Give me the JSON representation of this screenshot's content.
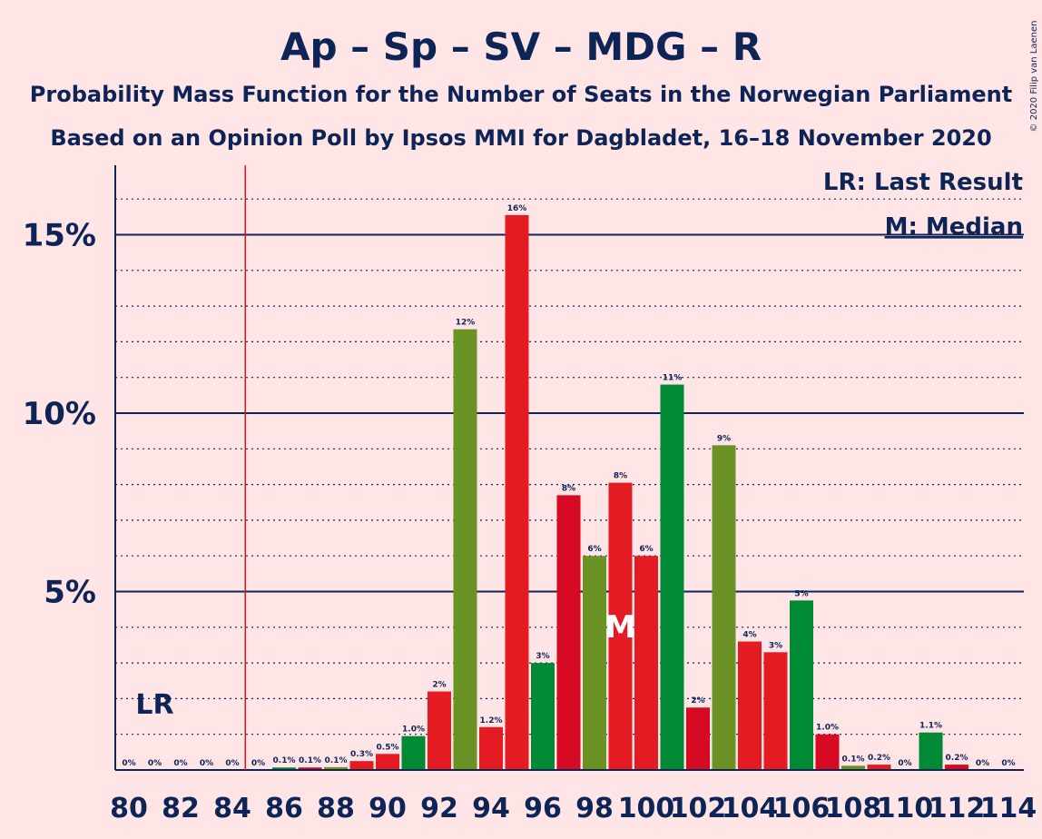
{
  "header": {
    "title": "Ap – Sp – SV – MDG – R",
    "subtitle1": "Probability Mass Function for the Number of Seats in the Norwegian Parliament",
    "subtitle2": "Based on an Opinion Poll by Ipsos MMI for Dagbladet, 16–18 November 2020"
  },
  "copyright": "© 2020 Filip van Laenen",
  "legend": {
    "lr": "LR: Last Result",
    "median": "M: Median"
  },
  "markers": {
    "lr_label": "LR",
    "median_label": "M",
    "last_result_seats": 84.5,
    "median_seats": 99
  },
  "colors": {
    "background": "#FFE5E6",
    "axis": "#0D2456",
    "lr_line": "#E8121F",
    "red": "#E41B23",
    "darkred": "#D60A22",
    "olive": "#6B9225",
    "green": "#008A36"
  },
  "chart_data": {
    "type": "bar",
    "title": "Ap – Sp – SV – MDG – R",
    "xlabel": "",
    "ylabel": "",
    "ylim": [
      0,
      16.5
    ],
    "y_ticks": [
      {
        "value": 5,
        "label": "5%"
      },
      {
        "value": 10,
        "label": "10%"
      },
      {
        "value": 15,
        "label": "15%"
      }
    ],
    "x_ticks": [
      "80",
      "82",
      "84",
      "86",
      "88",
      "90",
      "92",
      "94",
      "96",
      "98",
      "100",
      "102",
      "104",
      "106",
      "108",
      "110",
      "112",
      "114"
    ],
    "grid": true,
    "legend_position": "top-right",
    "bars": [
      {
        "seats": 80,
        "value": 0,
        "label": "0%",
        "color": "red"
      },
      {
        "seats": 81,
        "value": 0,
        "label": "0%",
        "color": "red"
      },
      {
        "seats": 82,
        "value": 0,
        "label": "0%",
        "color": "red"
      },
      {
        "seats": 83,
        "value": 0,
        "label": "0%",
        "color": "red"
      },
      {
        "seats": 84,
        "value": 0,
        "label": "0%",
        "color": "red"
      },
      {
        "seats": 85,
        "value": 0,
        "label": "0%",
        "color": "red"
      },
      {
        "seats": 86,
        "value": 0.07,
        "label": "0.1%",
        "color": "green"
      },
      {
        "seats": 87,
        "value": 0.07,
        "label": "0.1%",
        "color": "darkred"
      },
      {
        "seats": 88,
        "value": 0.08,
        "label": "0.1%",
        "color": "olive"
      },
      {
        "seats": 89,
        "value": 0.25,
        "label": "0.3%",
        "color": "red"
      },
      {
        "seats": 90,
        "value": 0.45,
        "label": "0.5%",
        "color": "red"
      },
      {
        "seats": 91,
        "value": 0.95,
        "label": "1.0%",
        "color": "green"
      },
      {
        "seats": 92,
        "value": 2.2,
        "label": "2%",
        "color": "red"
      },
      {
        "seats": 93,
        "value": 12.35,
        "label": "12%",
        "color": "olive"
      },
      {
        "seats": 94,
        "value": 1.2,
        "label": "1.2%",
        "color": "red"
      },
      {
        "seats": 95,
        "value": 15.55,
        "label": "16%",
        "color": "red"
      },
      {
        "seats": 96,
        "value": 3.0,
        "label": "3%",
        "color": "green"
      },
      {
        "seats": 97,
        "value": 7.7,
        "label": "8%",
        "color": "darkred"
      },
      {
        "seats": 98,
        "value": 6.0,
        "label": "6%",
        "color": "olive"
      },
      {
        "seats": 99,
        "value": 8.05,
        "label": "8%",
        "color": "red"
      },
      {
        "seats": 100,
        "value": 6.0,
        "label": "6%",
        "color": "red"
      },
      {
        "seats": 101,
        "value": 10.8,
        "label": "11%",
        "color": "green"
      },
      {
        "seats": 102,
        "value": 1.75,
        "label": "2%",
        "color": "darkred"
      },
      {
        "seats": 103,
        "value": 9.1,
        "label": "9%",
        "color": "olive"
      },
      {
        "seats": 104,
        "value": 3.6,
        "label": "4%",
        "color": "red"
      },
      {
        "seats": 105,
        "value": 3.3,
        "label": "3%",
        "color": "red"
      },
      {
        "seats": 106,
        "value": 4.75,
        "label": "5%",
        "color": "green"
      },
      {
        "seats": 107,
        "value": 1.0,
        "label": "1.0%",
        "color": "darkred"
      },
      {
        "seats": 108,
        "value": 0.12,
        "label": "0.1%",
        "color": "olive"
      },
      {
        "seats": 109,
        "value": 0.15,
        "label": "0.2%",
        "color": "red"
      },
      {
        "seats": 110,
        "value": 0,
        "label": "0%",
        "color": "red"
      },
      {
        "seats": 111,
        "value": 1.05,
        "label": "1.1%",
        "color": "green"
      },
      {
        "seats": 112,
        "value": 0.15,
        "label": "0.2%",
        "color": "darkred"
      },
      {
        "seats": 113,
        "value": 0,
        "label": "0%",
        "color": "olive"
      },
      {
        "seats": 114,
        "value": 0,
        "label": "0%",
        "color": "red"
      }
    ]
  }
}
